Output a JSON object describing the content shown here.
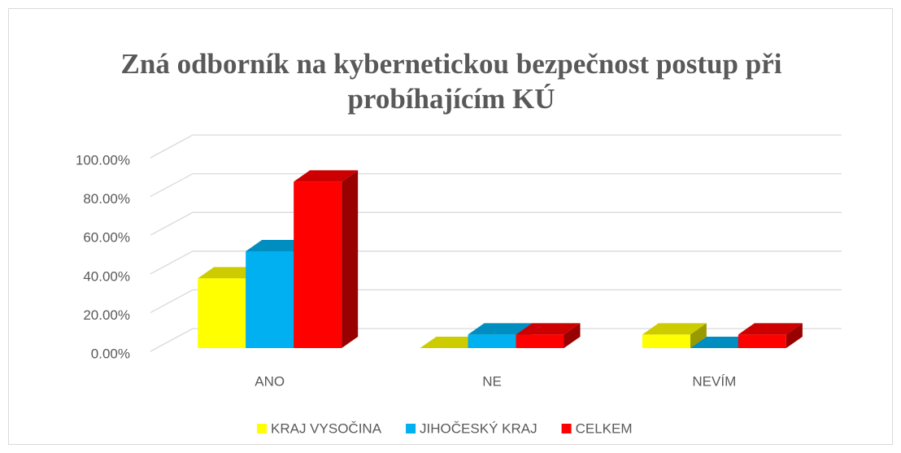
{
  "chart_data": {
    "type": "bar3d",
    "title": "Zná odborník na kybernetickou bezpečnost postup při probíhajícím KÚ",
    "categories": [
      "ANO",
      "NE",
      "NEVÍM"
    ],
    "series": [
      {
        "name": "KRAJ VYSOČINA",
        "color": "#ffff00",
        "values": [
          36,
          0,
          7
        ]
      },
      {
        "name": "JIHOČESKÝ KRAJ",
        "color": "#00b0f0",
        "values": [
          50,
          7,
          0
        ]
      },
      {
        "name": "CELKEM",
        "color": "#ff0000",
        "values": [
          86,
          7,
          7
        ]
      }
    ],
    "ylim": [
      0,
      100
    ],
    "yticks": [
      {
        "value": 0,
        "label": "0.00%"
      },
      {
        "value": 20,
        "label": "20.00%"
      },
      {
        "value": 40,
        "label": "40.00%"
      },
      {
        "value": 60,
        "label": "60.00%"
      },
      {
        "value": 80,
        "label": "80.00%"
      },
      {
        "value": 100,
        "label": "100.00%"
      }
    ],
    "grid": true,
    "legend": "bottom"
  }
}
